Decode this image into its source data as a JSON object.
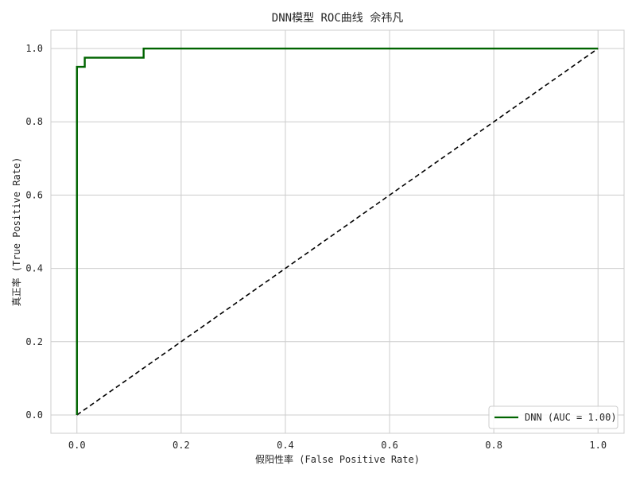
{
  "chart_data": {
    "type": "line",
    "title": "DNN模型 ROC曲线 佘祎凡",
    "xlabel": "假阳性率 (False Positive Rate)",
    "ylabel": "真正率 (True Positive Rate)",
    "xlim": [
      -0.05,
      1.05
    ],
    "ylim": [
      -0.05,
      1.05
    ],
    "grid": true,
    "legend_position": "lower right",
    "x_ticks": [
      0.0,
      0.2,
      0.4,
      0.6,
      0.8,
      1.0
    ],
    "y_ticks": [
      0.0,
      0.2,
      0.4,
      0.6,
      0.8,
      1.0
    ],
    "x_tick_labels": [
      "0.0",
      "0.2",
      "0.4",
      "0.6",
      "0.8",
      "1.0"
    ],
    "y_tick_labels": [
      "0.0",
      "0.2",
      "0.4",
      "0.6",
      "0.8",
      "1.0"
    ],
    "series": [
      {
        "name": "DNN (AUC = 1.00)",
        "color": "#006400",
        "style": "solid",
        "x": [
          0.0,
          0.0,
          0.0,
          0.015,
          0.015,
          0.128,
          0.128,
          1.0
        ],
        "y": [
          0.0,
          0.95,
          0.95,
          0.95,
          0.975,
          0.975,
          1.0,
          1.0
        ]
      },
      {
        "color": "#000000",
        "style": "dashed",
        "x": [
          0.0,
          1.0
        ],
        "y": [
          0.0,
          1.0
        ]
      }
    ]
  }
}
